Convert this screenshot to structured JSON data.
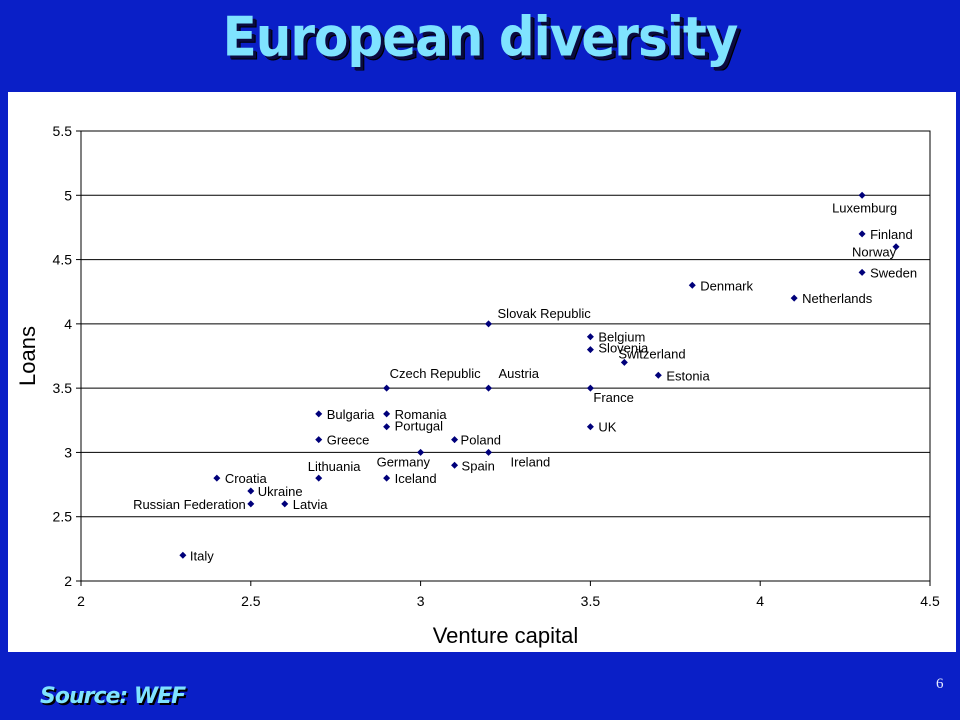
{
  "slide": {
    "title": "European diversity",
    "source": "Source: WEF",
    "page_number": "6"
  },
  "colors": {
    "background": "#0a1fc7",
    "title": "#7fe3ff",
    "marker": "#00007a",
    "grid": "#000000"
  },
  "chart_data": {
    "type": "scatter",
    "xlabel": "Venture capital",
    "ylabel": "Loans",
    "xlim": [
      2,
      4.5
    ],
    "ylim": [
      2,
      5.5
    ],
    "x_ticks": [
      "2",
      "2.5",
      "3",
      "3.5",
      "4",
      "4.5"
    ],
    "y_ticks": [
      "2",
      "2.5",
      "3",
      "3.5",
      "4",
      "4.5",
      "5",
      "5.5"
    ],
    "grid": "horizontal",
    "points": [
      {
        "label": "Luxemburg",
        "x": 4.3,
        "y": 5.0
      },
      {
        "label": "Finland",
        "x": 4.3,
        "y": 4.7
      },
      {
        "label": "Norway",
        "x": 4.4,
        "y": 4.6
      },
      {
        "label": "Sweden",
        "x": 4.3,
        "y": 4.4
      },
      {
        "label": "Denmark",
        "x": 3.8,
        "y": 4.3
      },
      {
        "label": "Netherlands",
        "x": 4.1,
        "y": 4.2
      },
      {
        "label": "Slovak Republic",
        "x": 3.2,
        "y": 4.0
      },
      {
        "label": "Belgium",
        "x": 3.5,
        "y": 3.9
      },
      {
        "label": "Slovenia",
        "x": 3.5,
        "y": 3.8
      },
      {
        "label": "Switzerland",
        "x": 3.6,
        "y": 3.7
      },
      {
        "label": "Estonia",
        "x": 3.7,
        "y": 3.6
      },
      {
        "label": "Czech Republic",
        "x": 2.9,
        "y": 3.5
      },
      {
        "label": "Austria",
        "x": 3.2,
        "y": 3.5
      },
      {
        "label": "France",
        "x": 3.5,
        "y": 3.5
      },
      {
        "label": "Bulgaria",
        "x": 2.7,
        "y": 3.3
      },
      {
        "label": "Romania",
        "x": 2.9,
        "y": 3.3
      },
      {
        "label": "Portugal",
        "x": 2.9,
        "y": 3.2
      },
      {
        "label": "UK",
        "x": 3.5,
        "y": 3.2
      },
      {
        "label": "Greece",
        "x": 2.7,
        "y": 3.1
      },
      {
        "label": "Poland",
        "x": 3.1,
        "y": 3.1
      },
      {
        "label": "Germany",
        "x": 3.0,
        "y": 3.0
      },
      {
        "label": "Ireland",
        "x": 3.2,
        "y": 3.0
      },
      {
        "label": "Spain",
        "x": 3.1,
        "y": 2.9
      },
      {
        "label": "Lithuania",
        "x": 2.7,
        "y": 2.8
      },
      {
        "label": "Croatia",
        "x": 2.4,
        "y": 2.8
      },
      {
        "label": "Iceland",
        "x": 2.9,
        "y": 2.8
      },
      {
        "label": "Ukraine",
        "x": 2.5,
        "y": 2.7
      },
      {
        "label": "Russian Federation",
        "x": 2.5,
        "y": 2.6
      },
      {
        "label": "Latvia",
        "x": 2.6,
        "y": 2.6
      },
      {
        "label": "Italy",
        "x": 2.3,
        "y": 2.2
      }
    ]
  }
}
